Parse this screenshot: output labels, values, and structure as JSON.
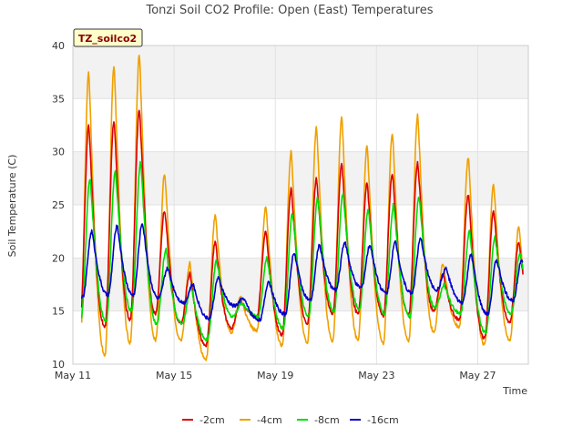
{
  "chart_data": {
    "type": "line",
    "title": "Tonzi Soil CO2 Profile: Open (East) Temperatures",
    "xlabel": "Time",
    "ylabel": "Soil Temperature (C)",
    "ylim": [
      10,
      40
    ],
    "xlim": [
      "2024-05-11",
      "2024-05-29"
    ],
    "yticks": [
      "10",
      "15",
      "20",
      "25",
      "30",
      "35",
      "40"
    ],
    "xticks": [
      {
        "label": "May 11",
        "date": "2024-05-11"
      },
      {
        "label": "May 15",
        "date": "2024-05-15"
      },
      {
        "label": "May 19",
        "date": "2024-05-19"
      },
      {
        "label": "May 23",
        "date": "2024-05-23"
      },
      {
        "label": "May 27",
        "date": "2024-05-27"
      }
    ],
    "badge": "TZ_soilco2",
    "grid": true,
    "legend_position": "bottom",
    "x": [
      "2024-05-11",
      "2024-05-12",
      "2024-05-13",
      "2024-05-14",
      "2024-05-15",
      "2024-05-16",
      "2024-05-17",
      "2024-05-18",
      "2024-05-19",
      "2024-05-20",
      "2024-05-21",
      "2024-05-22",
      "2024-05-23",
      "2024-05-24",
      "2024-05-25",
      "2024-05-26",
      "2024-05-27",
      "2024-05-28"
    ],
    "series": [
      {
        "name": "-2cm",
        "color": "#dd0000",
        "min": [
          13.2,
          13.5,
          14.2,
          14.8,
          13.8,
          11.8,
          13.4,
          14.5,
          12.8,
          13.8,
          14.8,
          14.8,
          14.6,
          14.7,
          15.0,
          14.2,
          12.4,
          14.0
        ],
        "max": [
          32.5,
          33.0,
          34.0,
          24.5,
          18.5,
          21.5,
          16.0,
          22.5,
          26.5,
          27.5,
          28.8,
          27.0,
          28.0,
          29.0,
          18.5,
          26.0,
          24.5,
          21.5
        ]
      },
      {
        "name": "-4cm",
        "color": "#f0a000",
        "min": [
          10.9,
          10.8,
          12.0,
          12.3,
          12.2,
          10.5,
          13.0,
          13.2,
          11.8,
          12.0,
          12.2,
          12.3,
          12.0,
          12.2,
          13.0,
          13.5,
          11.8,
          12.3
        ],
        "max": [
          37.5,
          38.2,
          39.2,
          28.0,
          19.5,
          24.0,
          16.3,
          24.8,
          30.0,
          32.3,
          33.2,
          30.5,
          31.8,
          33.5,
          19.5,
          29.5,
          27.0,
          23.0
        ]
      },
      {
        "name": "-8cm",
        "color": "#00dd00",
        "min": [
          14.2,
          14.0,
          15.0,
          13.8,
          13.8,
          12.3,
          14.5,
          14.5,
          13.4,
          14.5,
          15.0,
          15.2,
          14.8,
          14.5,
          15.3,
          14.8,
          12.9,
          14.8
        ],
        "max": [
          27.5,
          28.3,
          29.0,
          20.8,
          17.2,
          19.7,
          15.8,
          20.0,
          24.2,
          25.7,
          26.0,
          24.5,
          25.0,
          25.8,
          17.5,
          22.5,
          22.0,
          20.5
        ]
      },
      {
        "name": "-16cm",
        "color": "#0000cc",
        "min": [
          16.3,
          16.5,
          16.5,
          16.2,
          15.8,
          14.3,
          15.5,
          14.2,
          14.7,
          16.0,
          17.0,
          17.2,
          16.7,
          16.7,
          17.0,
          15.8,
          14.7,
          16.0
        ],
        "max": [
          22.5,
          23.0,
          23.3,
          19.0,
          17.5,
          18.1,
          16.2,
          17.8,
          20.5,
          21.2,
          21.5,
          21.2,
          21.5,
          21.8,
          19.0,
          20.3,
          19.8,
          19.9
        ]
      }
    ]
  }
}
